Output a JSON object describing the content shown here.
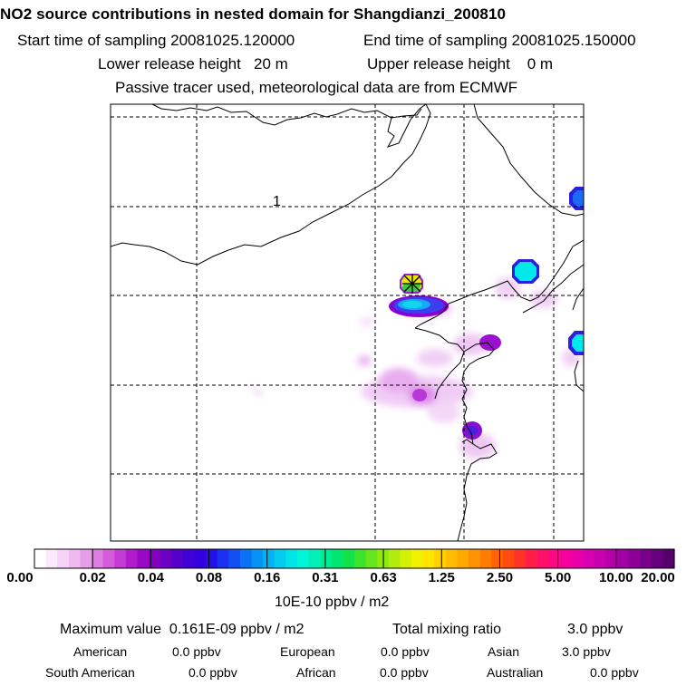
{
  "header": {
    "title": "NO2 source contributions in nested domain for Shangdianzi_200810",
    "start_label": "Start time of sampling",
    "start_value": "20081025.120000",
    "end_label": "End time of sampling",
    "end_value": "20081025.150000",
    "lower_label": "Lower release height",
    "lower_value": "20 m",
    "upper_label": "Upper release height",
    "upper_value": "0 m",
    "note": "Passive tracer used, meteorological data are from ECMWF"
  },
  "map": {
    "grid_label": "1",
    "receptor_marker": "asterisk-marker"
  },
  "colorbar": {
    "ticks": [
      "0.00",
      "0.02",
      "0.04",
      "0.08",
      "0.16",
      "0.31",
      "0.63",
      "1.25",
      "2.50",
      "5.00",
      "10.00",
      "20.00"
    ],
    "colors": [
      "#ffffff",
      "#fbe8fb",
      "#f6d2f6",
      "#efb9f0",
      "#e79ee9",
      "#df7de2",
      "#d45cdb",
      "#c43ad4",
      "#b01ccb",
      "#9a08c4",
      "#8300c0",
      "#6c00c4",
      "#5600cc",
      "#4300d6",
      "#3300e0",
      "#2410ea",
      "#1a2ff0",
      "#1250f4",
      "#0a72f6",
      "#0793f6",
      "#05b3f2",
      "#04ccee",
      "#00e4e8",
      "#00f4d8",
      "#00f0b8",
      "#00ec94",
      "#00e670",
      "#14e24a",
      "#3ce22c",
      "#66e41c",
      "#8ee814",
      "#b2ec0c",
      "#d4f004",
      "#f0f000",
      "#ffe400",
      "#ffd000",
      "#ffbc00",
      "#ffa800",
      "#ff9200",
      "#ff7c00",
      "#ff6400",
      "#ff4a10",
      "#ff3228",
      "#ff1e48",
      "#ff1068",
      "#ff0888",
      "#f5009c",
      "#e800a8",
      "#d800b0",
      "#c800b0",
      "#b400ac",
      "#a000a4",
      "#8c0098",
      "#78008a",
      "#66007c",
      "#56006c"
    ],
    "units": "10E-10 ppbv / m2"
  },
  "stats": {
    "max_label": "Maximum value",
    "max_value": "0.161E-09 ppbv / m2",
    "total_label": "Total mixing ratio",
    "total_value": "3.0 ppbv",
    "regions": [
      {
        "name": "American",
        "value": "0.0 ppbv"
      },
      {
        "name": "European",
        "value": "0.0 ppbv"
      },
      {
        "name": "Asian",
        "value": "3.0 ppbv"
      },
      {
        "name": "South American",
        "value": "0.0 ppbv"
      },
      {
        "name": "African",
        "value": "0.0 ppbv"
      },
      {
        "name": "Australian",
        "value": "0.0 ppbv"
      }
    ]
  }
}
